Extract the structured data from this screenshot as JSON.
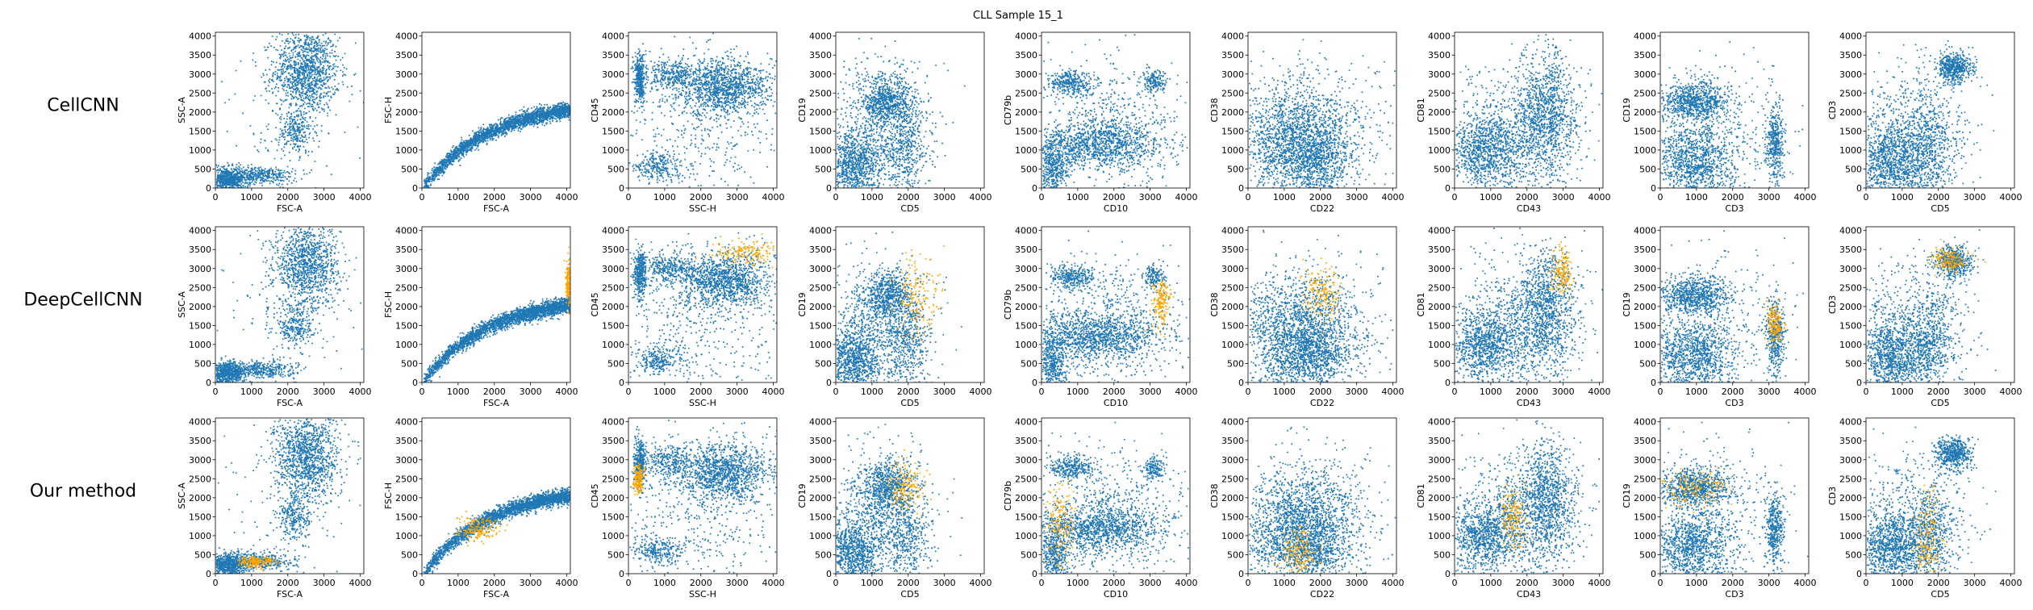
{
  "title": "CLL Sample 15_1",
  "colors": {
    "population": "#1f77b4",
    "selected": "#ffa500"
  },
  "row_labels": [
    "CellCNN",
    "DeepCellCNN",
    "Our method"
  ],
  "chart_data": {
    "type": "scatter",
    "grid": false,
    "xlim": [
      0,
      4100
    ],
    "ylim": [
      0,
      4100
    ],
    "ticks": [
      0,
      500,
      1000,
      1500,
      2000,
      2500,
      3000,
      3500,
      4000
    ],
    "x_ticks": [
      0,
      1000,
      2000,
      3000,
      4000
    ],
    "series": [
      {
        "name": ""
      },
      {
        "name": ""
      }
    ],
    "columns": [
      {
        "xlabel": "FSC-A",
        "ylabel": "SSC-A",
        "populations": [
          {
            "x": 2500,
            "y": 3100,
            "sx": 450,
            "sy": 550,
            "w": 0.45
          },
          {
            "x": 300,
            "y": 250,
            "sx": 250,
            "sy": 150,
            "w": 0.25
          },
          {
            "x": 1200,
            "y": 350,
            "sx": 500,
            "sy": 120,
            "w": 0.15
          },
          {
            "x": 2200,
            "y": 1500,
            "sx": 250,
            "sy": 300,
            "w": 0.1
          },
          {
            "x": 2000,
            "y": 2000,
            "sx": 1200,
            "sy": 1200,
            "w": 0.05
          }
        ],
        "highlights": [
          null,
          null,
          {
            "x": 1100,
            "y": 330,
            "sx": 250,
            "sy": 80
          }
        ]
      },
      {
        "xlabel": "FSC-A",
        "ylabel": "FSC-H",
        "populations": [
          {
            "curve": "saturating",
            "a": 2300,
            "b": 1800,
            "noise": 100
          }
        ],
        "highlights": [
          null,
          {
            "x": 4020,
            "y": 2600,
            "sx": 30,
            "sy": 300
          },
          {
            "x": 1500,
            "y": 1200,
            "sx": 300,
            "sy": 150
          }
        ]
      },
      {
        "xlabel": "SSC-H",
        "ylabel": "CD45",
        "populations": [
          {
            "x": 2600,
            "y": 2700,
            "sx": 650,
            "sy": 350,
            "w": 0.45
          },
          {
            "x": 300,
            "y": 2900,
            "sx": 80,
            "sy": 300,
            "w": 0.15
          },
          {
            "x": 1100,
            "y": 3000,
            "sx": 300,
            "sy": 200,
            "w": 0.1
          },
          {
            "x": 800,
            "y": 600,
            "sx": 350,
            "sy": 200,
            "w": 0.1
          },
          {
            "x": 2000,
            "y": 1800,
            "sx": 1200,
            "sy": 1100,
            "w": 0.2
          }
        ],
        "highlights": [
          null,
          {
            "x": 3200,
            "y": 3450,
            "sx": 450,
            "sy": 150
          },
          {
            "x": 250,
            "y": 2500,
            "sx": 80,
            "sy": 200
          }
        ]
      },
      {
        "xlabel": "CD5",
        "ylabel": "CD19",
        "populations": [
          {
            "x": 500,
            "y": 600,
            "sx": 400,
            "sy": 450,
            "w": 0.35
          },
          {
            "x": 1400,
            "y": 2300,
            "sx": 350,
            "sy": 350,
            "w": 0.25
          },
          {
            "x": 1900,
            "y": 1000,
            "sx": 300,
            "sy": 600,
            "w": 0.15
          },
          {
            "x": 1200,
            "y": 1500,
            "sx": 800,
            "sy": 900,
            "w": 0.25
          }
        ],
        "highlights": [
          null,
          {
            "x": 2300,
            "y": 2300,
            "sx": 350,
            "sy": 550
          },
          {
            "x": 1900,
            "y": 2300,
            "sx": 250,
            "sy": 300
          }
        ]
      },
      {
        "xlabel": "CD10",
        "ylabel": "CD79b",
        "populations": [
          {
            "x": 1500,
            "y": 1200,
            "sx": 900,
            "sy": 300,
            "w": 0.4
          },
          {
            "x": 800,
            "y": 2800,
            "sx": 300,
            "sy": 150,
            "w": 0.12
          },
          {
            "x": 3100,
            "y": 2800,
            "sx": 150,
            "sy": 150,
            "w": 0.06
          },
          {
            "x": 300,
            "y": 500,
            "sx": 200,
            "sy": 400,
            "w": 0.17
          },
          {
            "x": 1800,
            "y": 1500,
            "sx": 1100,
            "sy": 900,
            "w": 0.25
          }
        ],
        "highlights": [
          null,
          {
            "x": 3300,
            "y": 2100,
            "sx": 120,
            "sy": 300
          },
          {
            "x": 500,
            "y": 1300,
            "sx": 200,
            "sy": 500
          }
        ]
      },
      {
        "xlabel": "CD22",
        "ylabel": "CD38",
        "populations": [
          {
            "x": 1300,
            "y": 1100,
            "sx": 700,
            "sy": 700,
            "w": 0.55
          },
          {
            "x": 1900,
            "y": 700,
            "sx": 400,
            "sy": 400,
            "w": 0.15
          },
          {
            "x": 1700,
            "y": 1500,
            "sx": 1000,
            "sy": 900,
            "w": 0.3
          }
        ],
        "highlights": [
          null,
          {
            "x": 2000,
            "y": 2400,
            "sx": 250,
            "sy": 350
          },
          {
            "x": 1400,
            "y": 550,
            "sx": 250,
            "sy": 300
          }
        ]
      },
      {
        "xlabel": "CD43",
        "ylabel": "CD81",
        "populations": [
          {
            "x": 800,
            "y": 1000,
            "sx": 500,
            "sy": 500,
            "w": 0.35
          },
          {
            "x": 2500,
            "y": 2000,
            "sx": 400,
            "sy": 800,
            "w": 0.35
          },
          {
            "x": 1800,
            "y": 1500,
            "sx": 900,
            "sy": 900,
            "w": 0.3
          }
        ],
        "highlights": [
          null,
          {
            "x": 2950,
            "y": 2900,
            "sx": 150,
            "sy": 300
          },
          {
            "x": 1600,
            "y": 1500,
            "sx": 180,
            "sy": 400
          }
        ]
      },
      {
        "xlabel": "CD3",
        "ylabel": "CD19",
        "populations": [
          {
            "x": 900,
            "y": 2300,
            "sx": 500,
            "sy": 250,
            "w": 0.3
          },
          {
            "x": 900,
            "y": 700,
            "sx": 550,
            "sy": 500,
            "w": 0.4
          },
          {
            "x": 3150,
            "y": 1200,
            "sx": 120,
            "sy": 500,
            "w": 0.15
          },
          {
            "x": 1500,
            "y": 1500,
            "sx": 1100,
            "sy": 1000,
            "w": 0.15
          }
        ],
        "highlights": [
          null,
          {
            "x": 3150,
            "y": 1550,
            "sx": 120,
            "sy": 250
          },
          {
            "x": 900,
            "y": 2250,
            "sx": 500,
            "sy": 220
          }
        ]
      },
      {
        "xlabel": "CD5",
        "ylabel": "CD3",
        "populations": [
          {
            "x": 700,
            "y": 700,
            "sx": 500,
            "sy": 500,
            "w": 0.4
          },
          {
            "x": 2400,
            "y": 3200,
            "sx": 250,
            "sy": 200,
            "w": 0.2
          },
          {
            "x": 1800,
            "y": 1000,
            "sx": 300,
            "sy": 600,
            "w": 0.15
          },
          {
            "x": 1300,
            "y": 1500,
            "sx": 800,
            "sy": 900,
            "w": 0.25
          }
        ],
        "highlights": [
          null,
          {
            "x": 2300,
            "y": 3250,
            "sx": 250,
            "sy": 150
          },
          {
            "x": 1700,
            "y": 900,
            "sx": 180,
            "sy": 600
          }
        ]
      }
    ]
  }
}
